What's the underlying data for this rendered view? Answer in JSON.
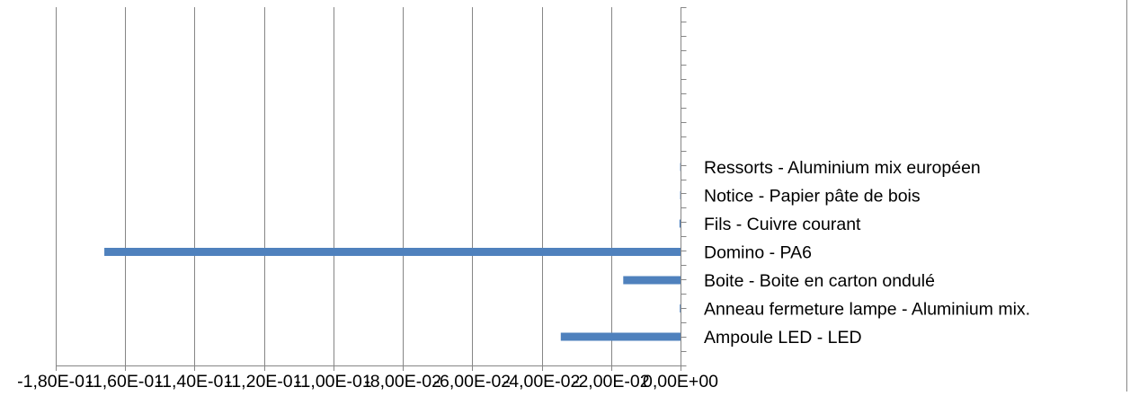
{
  "chart_data": {
    "type": "bar",
    "orientation": "horizontal",
    "categories": [
      "Ampoule LED - LED",
      "Anneau fermeture lampe - Aluminium mix.",
      "Boite - Boite en carton ondulé",
      "Domino - PA6",
      "Fils - Cuivre courant",
      "Notice - Papier pâte de bois",
      "Ressorts - Aluminium mix européen"
    ],
    "series": [
      {
        "values": [
          -0.0345,
          -0.0002,
          -0.0165,
          -0.166,
          -0.0003,
          -0.0001,
          -0.0001
        ]
      }
    ],
    "x_ticks": [
      -0.18,
      -0.16,
      -0.14,
      -0.12,
      -0.1,
      -0.08,
      -0.06,
      -0.04,
      -0.02,
      0
    ],
    "x_tick_labels": [
      "-1,80E-01",
      "-1,60E-01",
      "-1,40E-01",
      "-1,20E-01",
      "-1,00E-01",
      "-8,00E-02",
      "-6,00E-02",
      "-4,00E-02",
      "-2,00E-02",
      "0,00E+00"
    ],
    "xlim": [
      -0.18,
      0
    ],
    "grid": "vertical",
    "title": "",
    "xlabel": "",
    "ylabel": "",
    "bar_color": "#4F81BD",
    "grid_color": "#868686",
    "axis_color": "#868686",
    "text_color": "#000000"
  }
}
